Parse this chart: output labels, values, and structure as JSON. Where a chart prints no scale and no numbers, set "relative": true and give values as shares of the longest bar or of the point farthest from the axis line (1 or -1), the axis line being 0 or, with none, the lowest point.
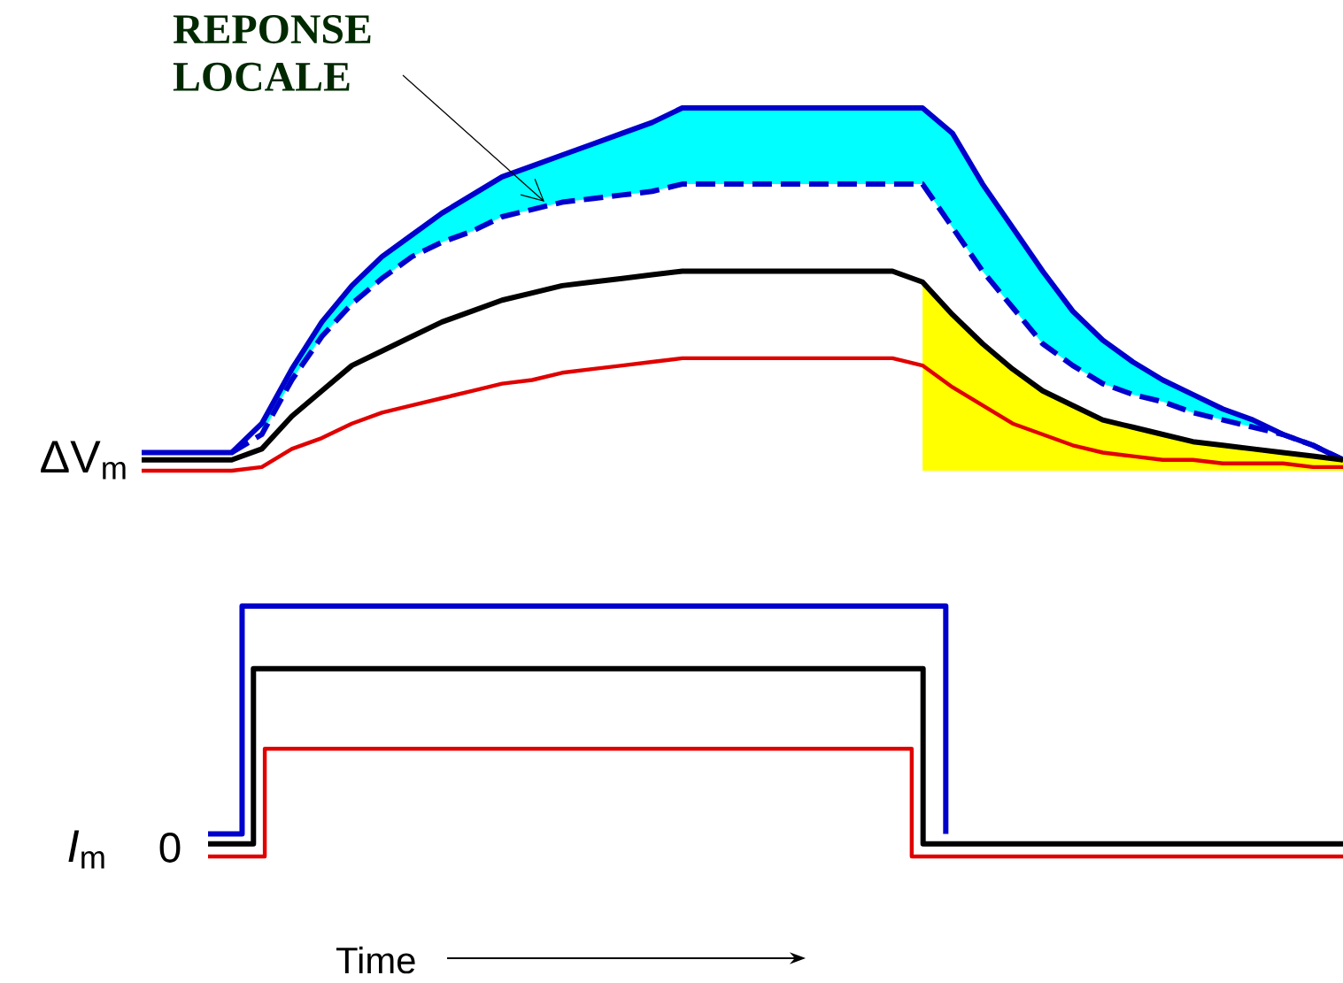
{
  "chart_data": [
    {
      "type": "line",
      "relative": true,
      "ylabel": "ΔV$_{m}$",
      "annotations": [
        "REPONSE LOCALE"
      ],
      "categories": [
        null,
        null,
        null,
        null,
        null,
        null,
        null,
        null,
        null,
        null,
        null,
        null,
        null,
        null,
        null,
        null,
        null,
        null,
        null,
        null,
        null,
        null,
        null,
        null,
        null,
        null,
        null,
        null,
        null,
        null,
        null,
        null,
        null,
        null,
        null,
        null,
        null,
        null,
        null,
        null,
        null
      ],
      "series": [
        {
          "color": "#0000cc",
          "values": [
            0.05,
            0.05,
            0.05,
            0.05,
            0.13,
            0.28,
            0.41,
            0.51,
            0.59,
            0.65,
            0.71,
            0.76,
            0.81,
            0.84,
            0.87,
            0.9,
            0.93,
            0.96,
            1,
            1,
            1,
            1,
            1,
            1,
            1,
            1,
            1,
            0.93,
            0.79,
            0.67,
            0.55,
            0.44,
            0.36,
            0.3,
            0.25,
            0.21,
            0.17,
            0.14,
            0.1,
            0.07,
            0.03
          ],
          "upper": [
            null,
            null,
            null,
            null,
            0.13,
            0.28,
            0.41,
            0.51,
            0.59,
            0.65,
            0.71,
            0.76,
            0.81,
            0.84,
            0.87,
            0.9,
            0.93,
            0.96,
            1,
            1,
            1,
            1,
            1,
            1,
            1,
            1,
            1,
            0.93,
            0.79,
            0.67,
            0.55,
            0.44,
            0.36,
            0.3,
            0.25,
            0.21,
            0.17,
            0.14,
            0.1,
            0.07,
            0.03
          ],
          "lower": [
            null,
            null,
            null,
            null,
            0.1,
            0.25,
            0.37,
            0.46,
            0.53,
            0.59,
            0.63,
            0.66,
            0.7,
            0.72,
            0.74,
            0.75,
            0.76,
            0.77,
            0.79,
            0.79,
            0.79,
            0.79,
            0.79,
            0.79,
            0.79,
            0.79,
            0.79,
            0.67,
            0.55,
            0.45,
            0.35,
            0.29,
            0.24,
            0.21,
            0.19,
            0.16,
            0.14,
            0.12,
            0.1,
            0.07,
            0.03
          ]
        },
        {
          "color": "#0000cc",
          "line_style": "dashed",
          "values": [
            null,
            null,
            null,
            0.05,
            0.1,
            0.25,
            0.37,
            0.46,
            0.53,
            0.59,
            0.63,
            0.66,
            0.7,
            0.72,
            0.74,
            0.75,
            0.76,
            0.77,
            0.79,
            0.79,
            0.79,
            0.79,
            0.79,
            0.79,
            0.79,
            0.79,
            0.79,
            0.67,
            0.55,
            0.45,
            0.35,
            0.29,
            0.24,
            0.21,
            0.19,
            0.16,
            0.14,
            0.12,
            0.1,
            0.07,
            0.03
          ]
        },
        {
          "color": "#000000",
          "values": [
            0.03,
            0.03,
            0.03,
            0.03,
            0.06,
            0.15,
            0.22,
            0.29,
            0.33,
            0.37,
            0.41,
            0.44,
            0.47,
            0.49,
            0.51,
            0.52,
            0.53,
            0.54,
            0.55,
            0.55,
            0.55,
            0.55,
            0.55,
            0.55,
            0.55,
            0.55,
            0.52,
            0.43,
            0.35,
            0.28,
            0.22,
            0.18,
            0.14,
            0.12,
            0.1,
            0.08,
            0.07,
            0.06,
            0.05,
            0.04,
            0.03
          ],
          "upper": [
            null,
            null,
            null,
            null,
            null,
            null,
            null,
            null,
            null,
            null,
            null,
            null,
            null,
            null,
            null,
            null,
            null,
            null,
            null,
            null,
            null,
            null,
            null,
            null,
            null,
            null,
            0.52,
            0.43,
            0.35,
            0.28,
            0.22,
            0.18,
            0.14,
            0.12,
            0.1,
            0.08,
            0.07,
            0.06,
            0.05,
            0.04,
            0.03
          ],
          "lower": [
            null,
            null,
            null,
            null,
            null,
            null,
            null,
            null,
            null,
            null,
            null,
            null,
            null,
            null,
            null,
            null,
            null,
            null,
            null,
            null,
            null,
            null,
            null,
            null,
            null,
            null,
            0,
            0,
            0,
            0,
            0,
            0,
            0,
            0,
            0,
            0,
            0,
            0,
            0,
            0,
            0
          ]
        },
        {
          "color": "#e00000",
          "values": [
            0,
            0,
            0,
            0,
            0.01,
            0.06,
            0.09,
            0.13,
            0.16,
            0.18,
            0.2,
            0.22,
            0.24,
            0.25,
            0.27,
            0.28,
            0.29,
            0.3,
            0.31,
            0.31,
            0.31,
            0.31,
            0.31,
            0.31,
            0.31,
            0.31,
            0.29,
            0.23,
            0.18,
            0.13,
            0.1,
            0.07,
            0.05,
            0.04,
            0.03,
            0.03,
            0.02,
            0.02,
            0.02,
            0.01,
            0.01
          ]
        }
      ]
    },
    {
      "type": "step",
      "relative": true,
      "ylabel": "*I*$_{m}$",
      "xlabel": "Time",
      "annotations": [
        "0"
      ],
      "categories": [
        null,
        null,
        null,
        null,
        null,
        null,
        null,
        null,
        null,
        null,
        null,
        null,
        null,
        null,
        null,
        null,
        null,
        null,
        null,
        null,
        null,
        null,
        null,
        null,
        null,
        null,
        null,
        null,
        null,
        null,
        null,
        null,
        null,
        null,
        null,
        null,
        null,
        null,
        null,
        null,
        null,
        null,
        null,
        null,
        null,
        null,
        null,
        null,
        null,
        null,
        null,
        null,
        null,
        null,
        null,
        null,
        null,
        null,
        null,
        null,
        null,
        null,
        null,
        null,
        null,
        null,
        null,
        null,
        null,
        null,
        null,
        null,
        null,
        null,
        null,
        null,
        null,
        null,
        null,
        null,
        null,
        null,
        null,
        null,
        null,
        null,
        null,
        null,
        null,
        null,
        null,
        null,
        null,
        null,
        null,
        null,
        null,
        null,
        null,
        null,
        null
      ],
      "series": [
        {
          "color": "#0000cc",
          "values": [
            0.09,
            0.09,
            0.09,
            1,
            1,
            1,
            1,
            1,
            1,
            1,
            1,
            1,
            1,
            1,
            1,
            1,
            1,
            1,
            1,
            1,
            1,
            1,
            1,
            1,
            1,
            1,
            1,
            1,
            1,
            1,
            1,
            1,
            1,
            1,
            1,
            1,
            1,
            1,
            1,
            1,
            1,
            1,
            1,
            1,
            1,
            1,
            1,
            1,
            1,
            1,
            1,
            1,
            1,
            1,
            1,
            1,
            1,
            1,
            1,
            1,
            1,
            1,
            1,
            1,
            1,
            0.09,
            null,
            null,
            null,
            null,
            null,
            null,
            null,
            null,
            null,
            null,
            null,
            null,
            null,
            null,
            null,
            null,
            null,
            null,
            null,
            null,
            null,
            null,
            null,
            null,
            null,
            null,
            null,
            null,
            null,
            null,
            null,
            null,
            null,
            null,
            null
          ]
        },
        {
          "color": "#000000",
          "values": [
            0.05,
            0.05,
            0.05,
            0.05,
            0.75,
            0.75,
            0.75,
            0.75,
            0.75,
            0.75,
            0.75,
            0.75,
            0.75,
            0.75,
            0.75,
            0.75,
            0.75,
            0.75,
            0.75,
            0.75,
            0.75,
            0.75,
            0.75,
            0.75,
            0.75,
            0.75,
            0.75,
            0.75,
            0.75,
            0.75,
            0.75,
            0.75,
            0.75,
            0.75,
            0.75,
            0.75,
            0.75,
            0.75,
            0.75,
            0.75,
            0.75,
            0.75,
            0.75,
            0.75,
            0.75,
            0.75,
            0.75,
            0.75,
            0.75,
            0.75,
            0.75,
            0.75,
            0.75,
            0.75,
            0.75,
            0.75,
            0.75,
            0.75,
            0.75,
            0.75,
            0.75,
            0.75,
            0.75,
            0.05,
            0.05,
            0.05,
            0.05,
            0.05,
            0.05,
            0.05,
            0.05,
            0.05,
            0.05,
            0.05,
            0.05,
            0.05,
            0.05,
            0.05,
            0.05,
            0.05,
            0.05,
            0.05,
            0.05,
            0.05,
            0.05,
            0.05,
            0.05,
            0.05,
            0.05,
            0.05,
            0.05,
            0.05,
            0.05,
            0.05,
            0.05,
            0.05,
            0.05,
            0.05,
            0.05,
            0.05,
            0.05
          ]
        },
        {
          "color": "#e00000",
          "values": [
            0,
            0,
            0,
            0,
            0,
            0.43,
            0.43,
            0.43,
            0.43,
            0.43,
            0.43,
            0.43,
            0.43,
            0.43,
            0.43,
            0.43,
            0.43,
            0.43,
            0.43,
            0.43,
            0.43,
            0.43,
            0.43,
            0.43,
            0.43,
            0.43,
            0.43,
            0.43,
            0.43,
            0.43,
            0.43,
            0.43,
            0.43,
            0.43,
            0.43,
            0.43,
            0.43,
            0.43,
            0.43,
            0.43,
            0.43,
            0.43,
            0.43,
            0.43,
            0.43,
            0.43,
            0.43,
            0.43,
            0.43,
            0.43,
            0.43,
            0.43,
            0.43,
            0.43,
            0.43,
            0.43,
            0.43,
            0.43,
            0.43,
            0.43,
            0.43,
            0.43,
            0,
            0,
            0,
            0,
            0,
            0,
            0,
            0,
            0,
            0,
            0,
            0,
            0,
            0,
            0,
            0,
            0,
            0,
            0,
            0,
            0,
            0,
            0,
            0,
            0,
            0,
            0,
            0,
            0,
            0,
            0,
            0,
            0,
            0,
            0,
            0,
            0,
            0,
            0
          ]
        }
      ]
    }
  ]
}
